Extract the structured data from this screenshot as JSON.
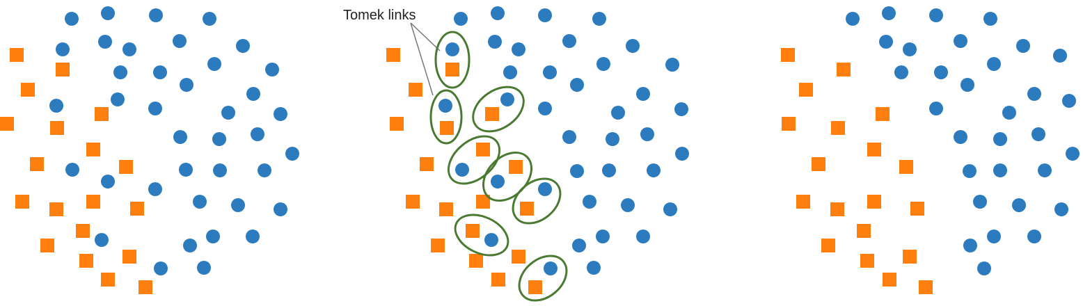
{
  "annotation": {
    "label": "Tomek links"
  },
  "colors": {
    "majority": "#2c7bbf",
    "minority": "#ff7f0e",
    "link_ring": "#4a7a32",
    "pointer": "#777777"
  },
  "panels": [
    {
      "id": "original",
      "minority": [
        [
          24,
          79
        ],
        [
          90,
          100
        ],
        [
          40,
          129
        ],
        [
          146,
          164
        ],
        [
          10,
          178
        ],
        [
          82,
          184
        ],
        [
          134,
          215
        ],
        [
          53,
          236
        ],
        [
          181,
          240
        ],
        [
          32,
          290
        ],
        [
          81,
          301
        ],
        [
          134,
          290
        ],
        [
          197,
          300
        ],
        [
          119,
          332
        ],
        [
          68,
          353
        ],
        [
          186,
          369
        ],
        [
          124,
          375
        ],
        [
          155,
          402
        ],
        [
          209,
          413
        ]
      ],
      "majority": [
        [
          103,
          27
        ],
        [
          155,
          19
        ],
        [
          224,
          22
        ],
        [
          301,
          27
        ],
        [
          90,
          71
        ],
        [
          151,
          60
        ],
        [
          186,
          71
        ],
        [
          258,
          59
        ],
        [
          349,
          66
        ],
        [
          173,
          104
        ],
        [
          230,
          104
        ],
        [
          308,
          92
        ],
        [
          391,
          100
        ],
        [
          268,
          122
        ],
        [
          169,
          143
        ],
        [
          364,
          135
        ],
        [
          81,
          152
        ],
        [
          223,
          156
        ],
        [
          328,
          162
        ],
        [
          403,
          164
        ],
        [
          370,
          193
        ],
        [
          259,
          197
        ],
        [
          315,
          200
        ],
        [
          420,
          221
        ],
        [
          104,
          244
        ],
        [
          267,
          244
        ],
        [
          316,
          245
        ],
        [
          380,
          245
        ],
        [
          155,
          261
        ],
        [
          223,
          272
        ],
        [
          287,
          290
        ],
        [
          342,
          295
        ],
        [
          403,
          301
        ],
        [
          146,
          345
        ],
        [
          306,
          340
        ],
        [
          363,
          340
        ],
        [
          273,
          353
        ],
        [
          231,
          386
        ],
        [
          293,
          385
        ]
      ]
    },
    {
      "id": "tomek-links",
      "minority": [
        [
          565,
          79
        ],
        [
          650,
          100
        ],
        [
          597,
          129
        ],
        [
          707,
          164
        ],
        [
          570,
          178
        ],
        [
          642,
          184
        ],
        [
          694,
          215
        ],
        [
          613,
          236
        ],
        [
          741,
          240
        ],
        [
          593,
          290
        ],
        [
          641,
          301
        ],
        [
          694,
          290
        ],
        [
          757,
          300
        ],
        [
          679,
          332
        ],
        [
          629,
          353
        ],
        [
          745,
          369
        ],
        [
          684,
          375
        ],
        [
          716,
          402
        ],
        [
          769,
          413
        ]
      ],
      "majority": [
        [
          662,
          27
        ],
        [
          715,
          19
        ],
        [
          783,
          22
        ],
        [
          861,
          27
        ],
        [
          650,
          71
        ],
        [
          711,
          60
        ],
        [
          745,
          71
        ],
        [
          818,
          59
        ],
        [
          909,
          66
        ],
        [
          733,
          104
        ],
        [
          790,
          104
        ],
        [
          867,
          92
        ],
        [
          966,
          93
        ],
        [
          829,
          122
        ],
        [
          729,
          143
        ],
        [
          924,
          135
        ],
        [
          640,
          152
        ],
        [
          783,
          156
        ],
        [
          888,
          162
        ],
        [
          979,
          157
        ],
        [
          930,
          193
        ],
        [
          818,
          197
        ],
        [
          880,
          200
        ],
        [
          980,
          221
        ],
        [
          664,
          244
        ],
        [
          829,
          246
        ],
        [
          875,
          245
        ],
        [
          939,
          245
        ],
        [
          715,
          261
        ],
        [
          783,
          272
        ],
        [
          847,
          290
        ],
        [
          902,
          295
        ],
        [
          963,
          301
        ],
        [
          706,
          345
        ],
        [
          866,
          340
        ],
        [
          924,
          340
        ],
        [
          832,
          353
        ],
        [
          791,
          386
        ],
        [
          853,
          385
        ]
      ],
      "links": [
        [
          650,
          86,
          24,
          40,
          0
        ],
        [
          641,
          168,
          22,
          38,
          0
        ],
        [
          716,
          157,
          40,
          27,
          -35
        ],
        [
          681,
          230,
          42,
          27,
          -40
        ],
        [
          729,
          254,
          40,
          28,
          -45
        ],
        [
          771,
          289,
          38,
          27,
          -40
        ],
        [
          692,
          338,
          40,
          26,
          25
        ],
        [
          780,
          400,
          38,
          27,
          -40
        ]
      ],
      "pointer_origin": [
        590,
        33
      ],
      "pointer_targets": [
        [
          632,
          73
        ],
        [
          622,
          137
        ]
      ]
    },
    {
      "id": "cleaned",
      "minority": [
        [
          1132,
          79
        ],
        [
          1212,
          100
        ],
        [
          1158,
          129
        ],
        [
          1268,
          164
        ],
        [
          1133,
          178
        ],
        [
          1204,
          184
        ],
        [
          1256,
          215
        ],
        [
          1176,
          236
        ],
        [
          1302,
          240
        ],
        [
          1154,
          290
        ],
        [
          1203,
          301
        ],
        [
          1256,
          290
        ],
        [
          1318,
          300
        ],
        [
          1241,
          332
        ],
        [
          1190,
          353
        ],
        [
          1307,
          369
        ],
        [
          1246,
          375
        ],
        [
          1278,
          402
        ],
        [
          1330,
          413
        ]
      ],
      "majority": [
        [
          1225,
          27
        ],
        [
          1277,
          19
        ],
        [
          1345,
          22
        ],
        [
          1423,
          27
        ],
        [
          1273,
          60
        ],
        [
          1307,
          71
        ],
        [
          1380,
          59
        ],
        [
          1470,
          66
        ],
        [
          1295,
          104
        ],
        [
          1352,
          104
        ],
        [
          1428,
          92
        ],
        [
          1523,
          80
        ],
        [
          1390,
          122
        ],
        [
          1486,
          135
        ],
        [
          1345,
          156
        ],
        [
          1450,
          162
        ],
        [
          1536,
          145
        ],
        [
          1380,
          197
        ],
        [
          1437,
          200
        ],
        [
          1492,
          193
        ],
        [
          1541,
          221
        ],
        [
          1393,
          246
        ],
        [
          1437,
          245
        ],
        [
          1501,
          245
        ],
        [
          1408,
          290
        ],
        [
          1464,
          295
        ],
        [
          1525,
          301
        ],
        [
          1428,
          340
        ],
        [
          1486,
          340
        ],
        [
          1394,
          353
        ],
        [
          1414,
          386
        ]
      ]
    }
  ]
}
